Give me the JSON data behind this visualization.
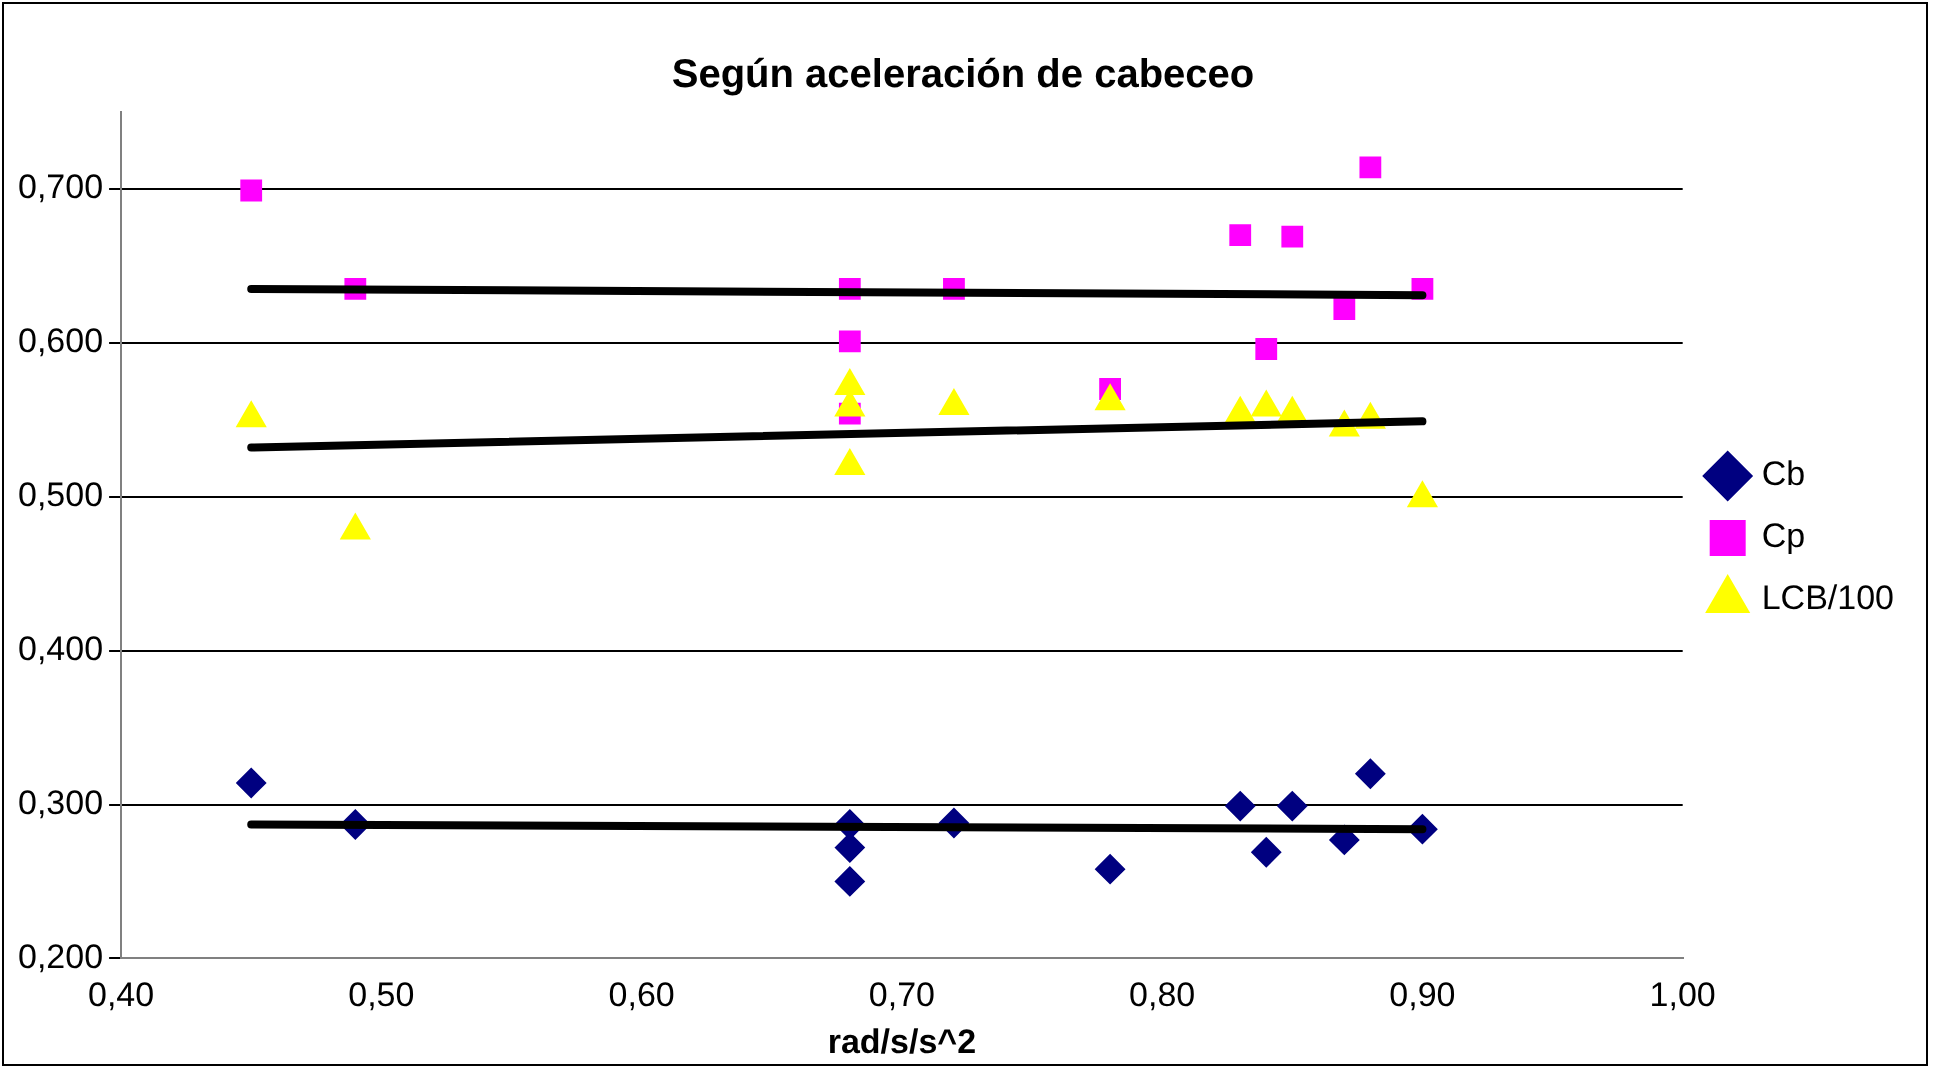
{
  "chart_data": {
    "type": "scatter",
    "title": "Según aceleración de cabeceo",
    "xlabel": "rad/s/s^2",
    "xlim": [
      0.4,
      1.0
    ],
    "xticks": [
      {
        "value": 0.4,
        "label": "0,40"
      },
      {
        "value": 0.5,
        "label": "0,50"
      },
      {
        "value": 0.6,
        "label": "0,60"
      },
      {
        "value": 0.7,
        "label": "0,70"
      },
      {
        "value": 0.8,
        "label": "0,80"
      },
      {
        "value": 0.9,
        "label": "0,90"
      },
      {
        "value": 1.0,
        "label": "1,00"
      }
    ],
    "ylim": [
      0.2,
      0.75
    ],
    "yticks": [
      {
        "value": 0.2,
        "label": "0,200"
      },
      {
        "value": 0.3,
        "label": "0,300"
      },
      {
        "value": 0.4,
        "label": "0,400"
      },
      {
        "value": 0.5,
        "label": "0,500"
      },
      {
        "value": 0.6,
        "label": "0,600"
      },
      {
        "value": 0.7,
        "label": "0,700"
      }
    ],
    "grid": "y",
    "legend": "right",
    "series": [
      {
        "name": "Cb",
        "color": "#000080",
        "marker": "diamond",
        "x": [
          0.45,
          0.49,
          0.68,
          0.68,
          0.68,
          0.72,
          0.78,
          0.83,
          0.84,
          0.85,
          0.87,
          0.88,
          0.9
        ],
        "values": [
          0.314,
          0.287,
          0.287,
          0.272,
          0.25,
          0.288,
          0.258,
          0.299,
          0.269,
          0.299,
          0.277,
          0.32,
          0.284
        ]
      },
      {
        "name": "Cp",
        "color": "#ff00ff",
        "marker": "square",
        "x": [
          0.45,
          0.49,
          0.68,
          0.68,
          0.68,
          0.72,
          0.78,
          0.83,
          0.84,
          0.85,
          0.87,
          0.88,
          0.9
        ],
        "values": [
          0.699,
          0.635,
          0.635,
          0.601,
          0.554,
          0.635,
          0.57,
          0.67,
          0.596,
          0.669,
          0.622,
          0.714,
          0.635
        ]
      },
      {
        "name": "LCB/100",
        "color": "#ffff00",
        "marker": "triangle",
        "x": [
          0.45,
          0.49,
          0.68,
          0.68,
          0.68,
          0.72,
          0.78,
          0.83,
          0.84,
          0.85,
          0.87,
          0.88,
          0.9
        ],
        "values": [
          0.551,
          0.478,
          0.572,
          0.558,
          0.52,
          0.559,
          0.562,
          0.554,
          0.558,
          0.554,
          0.545,
          0.55,
          0.499
        ]
      },
      {
        "type": "line",
        "color": "#000000",
        "marker": "none",
        "x": [
          0.45,
          0.9
        ],
        "values": [
          0.287,
          0.284
        ]
      },
      {
        "type": "line",
        "color": "#000000",
        "marker": "none",
        "x": [
          0.45,
          0.9
        ],
        "values": [
          0.635,
          0.631
        ]
      },
      {
        "type": "line",
        "color": "#000000",
        "marker": "none",
        "x": [
          0.45,
          0.9
        ],
        "values": [
          0.532,
          0.549
        ]
      }
    ]
  }
}
